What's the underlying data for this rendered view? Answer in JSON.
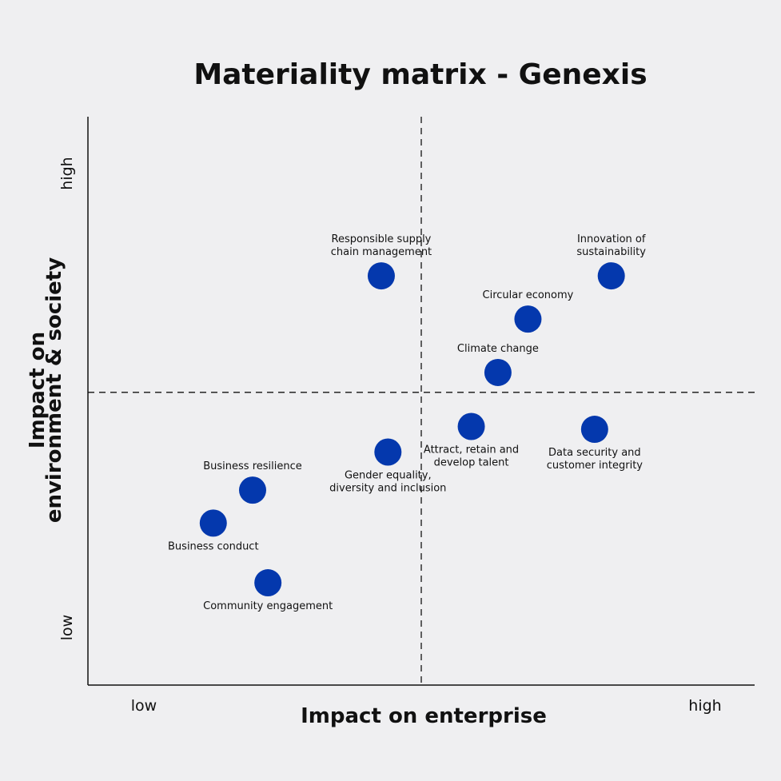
{
  "chart_data": {
    "type": "scatter",
    "title": "Materiality matrix - Genexis",
    "xlabel": "Impact on enterprise",
    "ylabel_lines": [
      "Impact on",
      "environment & society"
    ],
    "x_ticks": [
      "low",
      "high"
    ],
    "y_ticks": [
      "low",
      "high"
    ],
    "xlim": [
      0,
      10
    ],
    "ylim": [
      0,
      10
    ],
    "divider_x": 5,
    "divider_y": 5.15,
    "grid": false,
    "marker_color": "#0438ad",
    "points": [
      {
        "label": [
          "Responsible supply",
          "chain management"
        ],
        "x": 4.4,
        "y": 7.2,
        "label_position": "above"
      },
      {
        "label": [
          "Innovation of",
          "sustainability"
        ],
        "x": 7.85,
        "y": 7.2,
        "label_position": "above"
      },
      {
        "label": [
          "Circular economy"
        ],
        "x": 6.6,
        "y": 6.44,
        "label_position": "above"
      },
      {
        "label": [
          "Climate change"
        ],
        "x": 6.15,
        "y": 5.5,
        "label_position": "above"
      },
      {
        "label": [
          "Attract, retain and",
          "develop talent"
        ],
        "x": 5.75,
        "y": 4.55,
        "label_position": "below"
      },
      {
        "label": [
          "Data security and",
          "customer integrity"
        ],
        "x": 7.6,
        "y": 4.5,
        "label_position": "below"
      },
      {
        "label": [
          "Gender equality,",
          "diversity and inclusion"
        ],
        "x": 4.5,
        "y": 4.1,
        "label_position": "below"
      },
      {
        "label": [
          "Business resilience"
        ],
        "x": 2.47,
        "y": 3.43,
        "label_position": "above"
      },
      {
        "label": [
          "Business conduct"
        ],
        "x": 1.88,
        "y": 2.85,
        "label_position": "below"
      },
      {
        "label": [
          "Community engagement"
        ],
        "x": 2.7,
        "y": 1.8,
        "label_position": "below"
      }
    ]
  }
}
